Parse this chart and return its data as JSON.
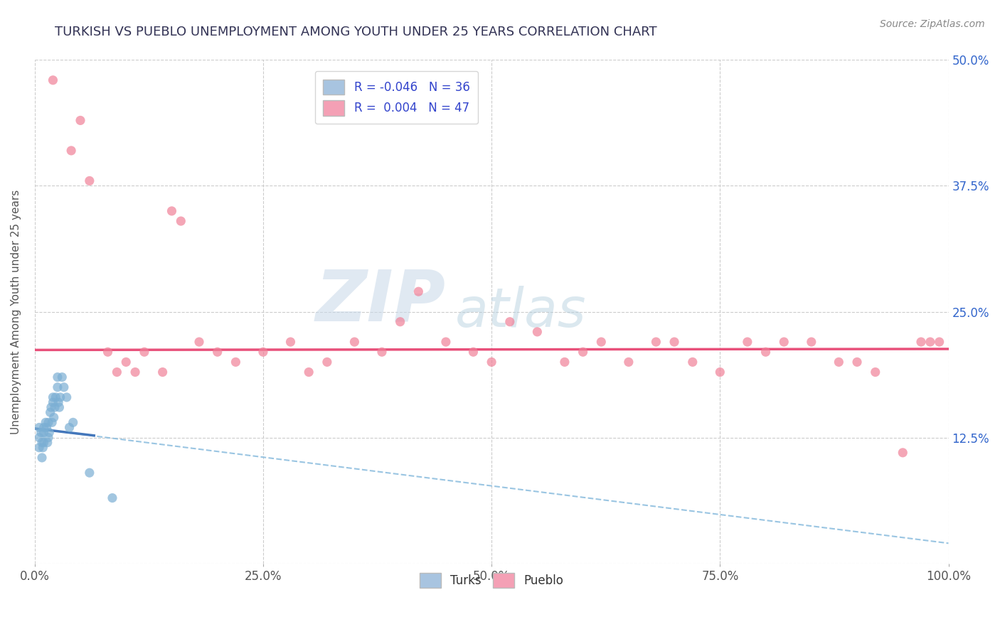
{
  "title": "TURKISH VS PUEBLO UNEMPLOYMENT AMONG YOUTH UNDER 25 YEARS CORRELATION CHART",
  "source": "Source: ZipAtlas.com",
  "ylabel": "Unemployment Among Youth under 25 years",
  "xlim": [
    0,
    1.0
  ],
  "ylim": [
    0,
    0.5
  ],
  "xticks": [
    0.0,
    0.25,
    0.5,
    0.75,
    1.0
  ],
  "xtick_labels": [
    "0.0%",
    "25.0%",
    "50.0%",
    "75.0%",
    "100.0%"
  ],
  "yticks": [
    0.0,
    0.125,
    0.25,
    0.375,
    0.5
  ],
  "ytick_labels": [
    "",
    "12.5%",
    "25.0%",
    "37.5%",
    "50.0%"
  ],
  "turks_R": "-0.046",
  "turks_N": "36",
  "pueblo_R": "0.004",
  "pueblo_N": "47",
  "turks_color": "#a8c4e0",
  "pueblo_color": "#f4a0b5",
  "turks_scatter_color": "#7bafd4",
  "pueblo_scatter_color": "#f08098",
  "trend_turks_solid_color": "#4477bb",
  "trend_turks_dash_color": "#88bbdd",
  "trend_pueblo_color": "#e8507a",
  "watermark_zip": "ZIP",
  "watermark_atlas": "atlas",
  "background_color": "#ffffff",
  "turks_x": [
    0.005,
    0.005,
    0.005,
    0.007,
    0.008,
    0.008,
    0.009,
    0.01,
    0.01,
    0.01,
    0.012,
    0.013,
    0.014,
    0.015,
    0.015,
    0.016,
    0.017,
    0.018,
    0.019,
    0.02,
    0.02,
    0.021,
    0.022,
    0.023,
    0.025,
    0.025,
    0.026,
    0.027,
    0.028,
    0.03,
    0.032,
    0.035,
    0.038,
    0.042,
    0.06,
    0.085
  ],
  "turks_y": [
    0.135,
    0.125,
    0.115,
    0.13,
    0.12,
    0.105,
    0.115,
    0.135,
    0.13,
    0.12,
    0.14,
    0.135,
    0.12,
    0.14,
    0.125,
    0.13,
    0.15,
    0.155,
    0.14,
    0.165,
    0.16,
    0.145,
    0.155,
    0.165,
    0.185,
    0.175,
    0.16,
    0.155,
    0.165,
    0.185,
    0.175,
    0.165,
    0.135,
    0.14,
    0.09,
    0.065
  ],
  "pueblo_x": [
    0.02,
    0.04,
    0.05,
    0.06,
    0.08,
    0.09,
    0.1,
    0.11,
    0.12,
    0.14,
    0.15,
    0.16,
    0.18,
    0.2,
    0.22,
    0.25,
    0.28,
    0.3,
    0.32,
    0.35,
    0.38,
    0.4,
    0.42,
    0.45,
    0.48,
    0.5,
    0.52,
    0.55,
    0.58,
    0.6,
    0.62,
    0.65,
    0.68,
    0.7,
    0.72,
    0.75,
    0.78,
    0.8,
    0.82,
    0.85,
    0.88,
    0.9,
    0.92,
    0.95,
    0.97,
    0.98,
    0.99
  ],
  "pueblo_y": [
    0.48,
    0.41,
    0.44,
    0.38,
    0.21,
    0.19,
    0.2,
    0.19,
    0.21,
    0.19,
    0.35,
    0.34,
    0.22,
    0.21,
    0.2,
    0.21,
    0.22,
    0.19,
    0.2,
    0.22,
    0.21,
    0.24,
    0.27,
    0.22,
    0.21,
    0.2,
    0.24,
    0.23,
    0.2,
    0.21,
    0.22,
    0.2,
    0.22,
    0.22,
    0.2,
    0.19,
    0.22,
    0.21,
    0.22,
    0.22,
    0.2,
    0.2,
    0.19,
    0.11,
    0.22,
    0.22,
    0.22
  ],
  "pueblo_trend_y0": 0.212,
  "pueblo_trend_y1": 0.213,
  "turks_trend_solid_x0": 0.0,
  "turks_trend_solid_x1": 0.065,
  "turks_trend_solid_y0": 0.134,
  "turks_trend_solid_y1": 0.127,
  "turks_trend_dash_x0": 0.0,
  "turks_trend_dash_x1": 1.0,
  "turks_trend_dash_y0": 0.134,
  "turks_trend_dash_y1": 0.02
}
